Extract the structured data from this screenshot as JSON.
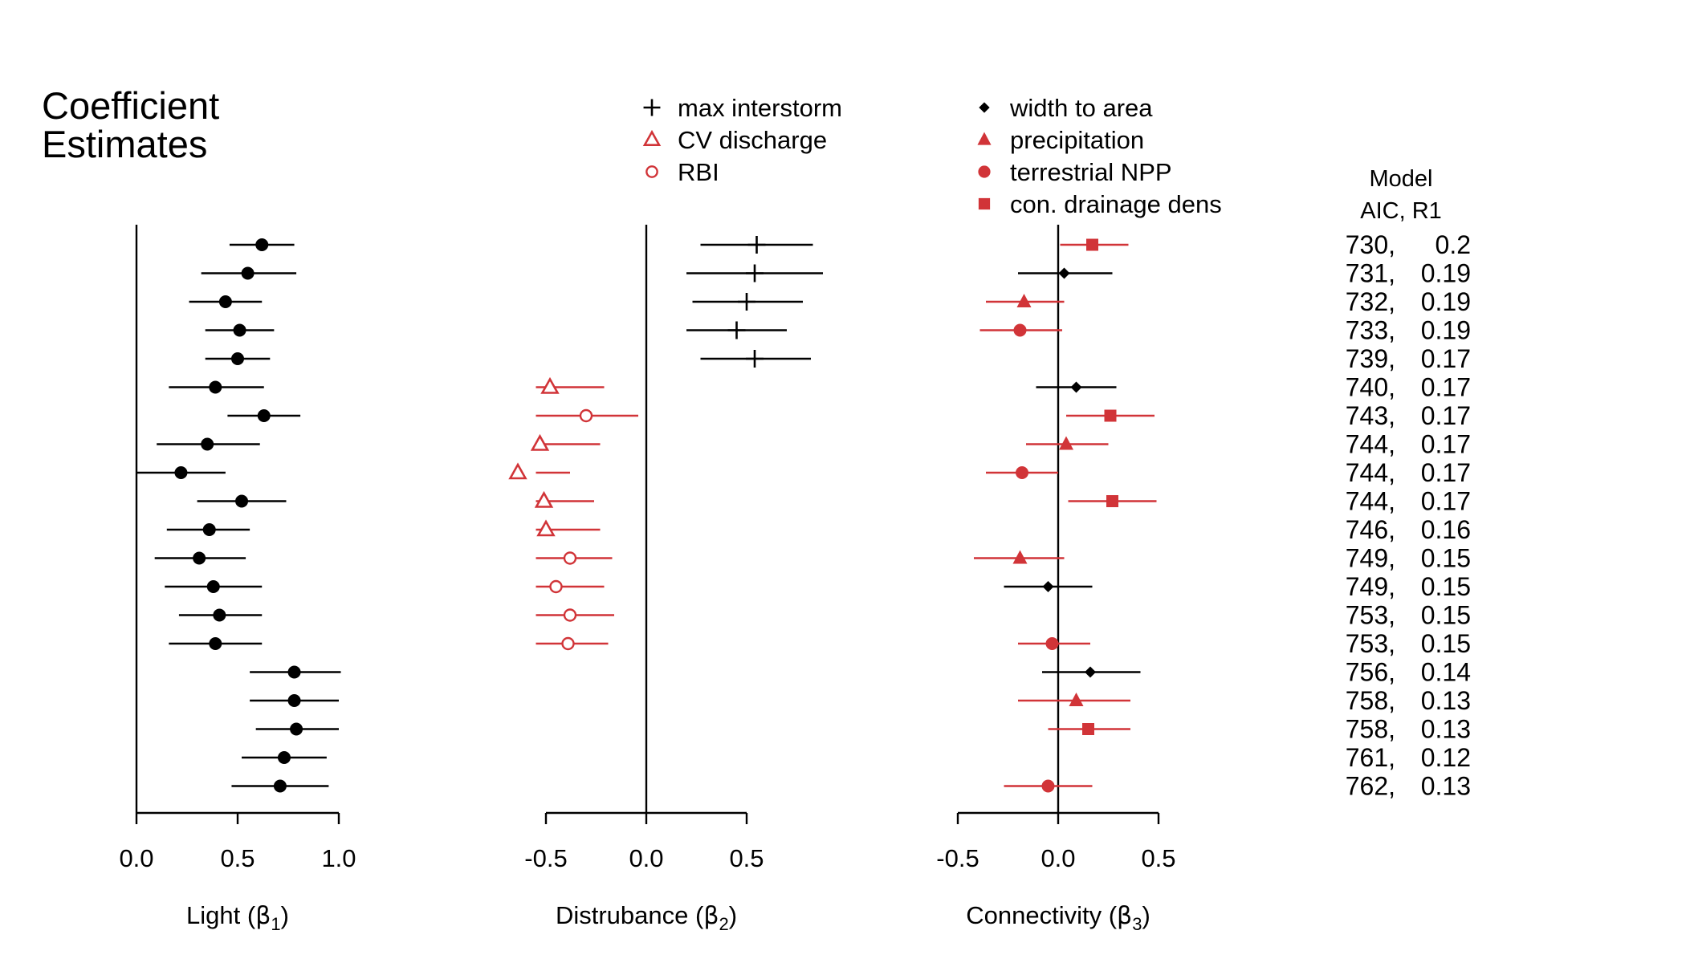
{
  "title_lines": [
    "Coefficient",
    "Estimates"
  ],
  "colors": {
    "black": "#000000",
    "red": "#d13438"
  },
  "model_header": [
    "Model",
    "AIC, R1"
  ],
  "chart_data": [
    {
      "type": "forest",
      "panel": "light",
      "xlabel": "Light (β1)",
      "xlabel_main": "Light (",
      "xlabel_greek": "β",
      "xlabel_sub": "1",
      "xlabel_end": ")",
      "xlim": [
        0.0,
        1.0
      ],
      "ticks": [
        0.0,
        0.5,
        1.0
      ],
      "tick_labels": [
        "0.0",
        "0.5",
        "1.0"
      ],
      "zero_line": 0.0,
      "rows": [
        {
          "est": 0.62,
          "lo": 0.46,
          "hi": 0.78
        },
        {
          "est": 0.55,
          "lo": 0.32,
          "hi": 0.79
        },
        {
          "est": 0.44,
          "lo": 0.26,
          "hi": 0.62
        },
        {
          "est": 0.51,
          "lo": 0.34,
          "hi": 0.68
        },
        {
          "est": 0.5,
          "lo": 0.34,
          "hi": 0.66
        },
        {
          "est": 0.39,
          "lo": 0.16,
          "hi": 0.63
        },
        {
          "est": 0.63,
          "lo": 0.45,
          "hi": 0.81
        },
        {
          "est": 0.35,
          "lo": 0.1,
          "hi": 0.61
        },
        {
          "est": 0.22,
          "lo": 0.0,
          "hi": 0.44
        },
        {
          "est": 0.52,
          "lo": 0.3,
          "hi": 0.74
        },
        {
          "est": 0.36,
          "lo": 0.15,
          "hi": 0.56
        },
        {
          "est": 0.31,
          "lo": 0.09,
          "hi": 0.54
        },
        {
          "est": 0.38,
          "lo": 0.14,
          "hi": 0.62
        },
        {
          "est": 0.41,
          "lo": 0.21,
          "hi": 0.62
        },
        {
          "est": 0.39,
          "lo": 0.16,
          "hi": 0.62
        },
        {
          "est": 0.78,
          "lo": 0.56,
          "hi": 1.01
        },
        {
          "est": 0.78,
          "lo": 0.56,
          "hi": 1.0
        },
        {
          "est": 0.79,
          "lo": 0.59,
          "hi": 1.0
        },
        {
          "est": 0.73,
          "lo": 0.52,
          "hi": 0.94
        },
        {
          "est": 0.71,
          "lo": 0.47,
          "hi": 0.95
        }
      ]
    },
    {
      "type": "forest",
      "panel": "disturbance",
      "xlabel": "Distrubance (β2)",
      "xlabel_main": "Distrubance (",
      "xlabel_greek": "β",
      "xlabel_sub": "2",
      "xlabel_end": ")",
      "xlim": [
        -0.5,
        0.5
      ],
      "ticks": [
        -0.5,
        0.0,
        0.5
      ],
      "tick_labels": [
        "-0.5",
        "0.0",
        "0.5"
      ],
      "zero_line": 0.0,
      "legend": [
        {
          "label": "max interstorm",
          "marker": "plus",
          "color": "#000000"
        },
        {
          "label": "CV discharge",
          "marker": "triangle-open",
          "color": "#d13438"
        },
        {
          "label": "RBI",
          "marker": "circle-open",
          "color": "#d13438"
        }
      ],
      "rows": [
        {
          "est": 0.55,
          "lo": 0.27,
          "hi": 0.83,
          "marker": "plus"
        },
        {
          "est": 0.54,
          "lo": 0.2,
          "hi": 0.88,
          "marker": "plus"
        },
        {
          "est": 0.5,
          "lo": 0.23,
          "hi": 0.78,
          "marker": "plus"
        },
        {
          "est": 0.45,
          "lo": 0.2,
          "hi": 0.7,
          "marker": "plus"
        },
        {
          "est": 0.54,
          "lo": 0.27,
          "hi": 0.82,
          "marker": "plus"
        },
        {
          "est": -0.48,
          "lo": -0.76,
          "hi": -0.21,
          "marker": "triangle-open"
        },
        {
          "est": -0.3,
          "lo": -0.55,
          "hi": -0.04,
          "marker": "circle-open"
        },
        {
          "est": -0.53,
          "lo": -0.81,
          "hi": -0.23,
          "marker": "triangle-open"
        },
        {
          "est": -0.64,
          "lo": -0.9,
          "hi": -0.38,
          "marker": "triangle-open"
        },
        {
          "est": -0.51,
          "lo": -0.76,
          "hi": -0.26,
          "marker": "triangle-open"
        },
        {
          "est": -0.5,
          "lo": -0.76,
          "hi": -0.23,
          "marker": "triangle-open"
        },
        {
          "est": -0.38,
          "lo": -0.59,
          "hi": -0.17,
          "marker": "circle-open"
        },
        {
          "est": -0.45,
          "lo": -0.68,
          "hi": -0.21,
          "marker": "circle-open"
        },
        {
          "est": -0.38,
          "lo": -0.59,
          "hi": -0.16,
          "marker": "circle-open"
        },
        {
          "est": -0.39,
          "lo": -0.59,
          "hi": -0.19,
          "marker": "circle-open"
        }
      ]
    },
    {
      "type": "forest",
      "panel": "connectivity",
      "xlabel": "Connectivity (β3)",
      "xlabel_main": "Connectivity (",
      "xlabel_greek": "β",
      "xlabel_sub": "3",
      "xlabel_end": ")",
      "xlim": [
        -0.5,
        0.5
      ],
      "ticks": [
        -0.5,
        0.0,
        0.5
      ],
      "tick_labels": [
        "-0.5",
        "0.0",
        "0.5"
      ],
      "zero_line": 0.0,
      "legend": [
        {
          "label": "width to area",
          "marker": "diamond",
          "color": "#000000"
        },
        {
          "label": "precipitation",
          "marker": "triangle",
          "color": "#d13438"
        },
        {
          "label": "terrestrial NPP",
          "marker": "circle",
          "color": "#d13438"
        },
        {
          "label": "con. drainage dens",
          "marker": "square",
          "color": "#d13438"
        }
      ],
      "rows": [
        {
          "row": 0,
          "est": 0.17,
          "lo": 0.01,
          "hi": 0.35,
          "marker": "square"
        },
        {
          "row": 1,
          "est": 0.03,
          "lo": -0.2,
          "hi": 0.27,
          "marker": "diamond"
        },
        {
          "row": 2,
          "est": -0.17,
          "lo": -0.36,
          "hi": 0.03,
          "marker": "triangle"
        },
        {
          "row": 3,
          "est": -0.19,
          "lo": -0.39,
          "hi": 0.02,
          "marker": "circle"
        },
        {
          "row": 5,
          "est": 0.09,
          "lo": -0.11,
          "hi": 0.29,
          "marker": "diamond"
        },
        {
          "row": 6,
          "est": 0.26,
          "lo": 0.04,
          "hi": 0.48,
          "marker": "square"
        },
        {
          "row": 7,
          "est": 0.04,
          "lo": -0.16,
          "hi": 0.25,
          "marker": "triangle"
        },
        {
          "row": 8,
          "est": -0.18,
          "lo": -0.36,
          "hi": 0.0,
          "marker": "circle"
        },
        {
          "row": 9,
          "est": 0.27,
          "lo": 0.05,
          "hi": 0.49,
          "marker": "square"
        },
        {
          "row": 11,
          "est": -0.19,
          "lo": -0.42,
          "hi": 0.03,
          "marker": "triangle"
        },
        {
          "row": 12,
          "est": -0.05,
          "lo": -0.27,
          "hi": 0.17,
          "marker": "diamond"
        },
        {
          "row": 14,
          "est": -0.03,
          "lo": -0.2,
          "hi": 0.16,
          "marker": "circle"
        },
        {
          "row": 15,
          "est": 0.16,
          "lo": -0.08,
          "hi": 0.41,
          "marker": "diamond"
        },
        {
          "row": 16,
          "est": 0.09,
          "lo": -0.2,
          "hi": 0.36,
          "marker": "triangle"
        },
        {
          "row": 17,
          "est": 0.15,
          "lo": -0.05,
          "hi": 0.36,
          "marker": "square"
        },
        {
          "row": 19,
          "est": -0.05,
          "lo": -0.27,
          "hi": 0.17,
          "marker": "circle"
        }
      ]
    }
  ],
  "models": [
    {
      "aic": "730,",
      "r1": "0.2"
    },
    {
      "aic": "731,",
      "r1": "0.19"
    },
    {
      "aic": "732,",
      "r1": "0.19"
    },
    {
      "aic": "733,",
      "r1": "0.19"
    },
    {
      "aic": "739,",
      "r1": "0.17"
    },
    {
      "aic": "740,",
      "r1": "0.17"
    },
    {
      "aic": "743,",
      "r1": "0.17"
    },
    {
      "aic": "744,",
      "r1": "0.17"
    },
    {
      "aic": "744,",
      "r1": "0.17"
    },
    {
      "aic": "744,",
      "r1": "0.17"
    },
    {
      "aic": "746,",
      "r1": "0.16"
    },
    {
      "aic": "749,",
      "r1": "0.15"
    },
    {
      "aic": "749,",
      "r1": "0.15"
    },
    {
      "aic": "753,",
      "r1": "0.15"
    },
    {
      "aic": "753,",
      "r1": "0.15"
    },
    {
      "aic": "756,",
      "r1": "0.14"
    },
    {
      "aic": "758,",
      "r1": "0.13"
    },
    {
      "aic": "758,",
      "r1": "0.13"
    },
    {
      "aic": "761,",
      "r1": "0.12"
    },
    {
      "aic": "762,",
      "r1": "0.13"
    }
  ]
}
